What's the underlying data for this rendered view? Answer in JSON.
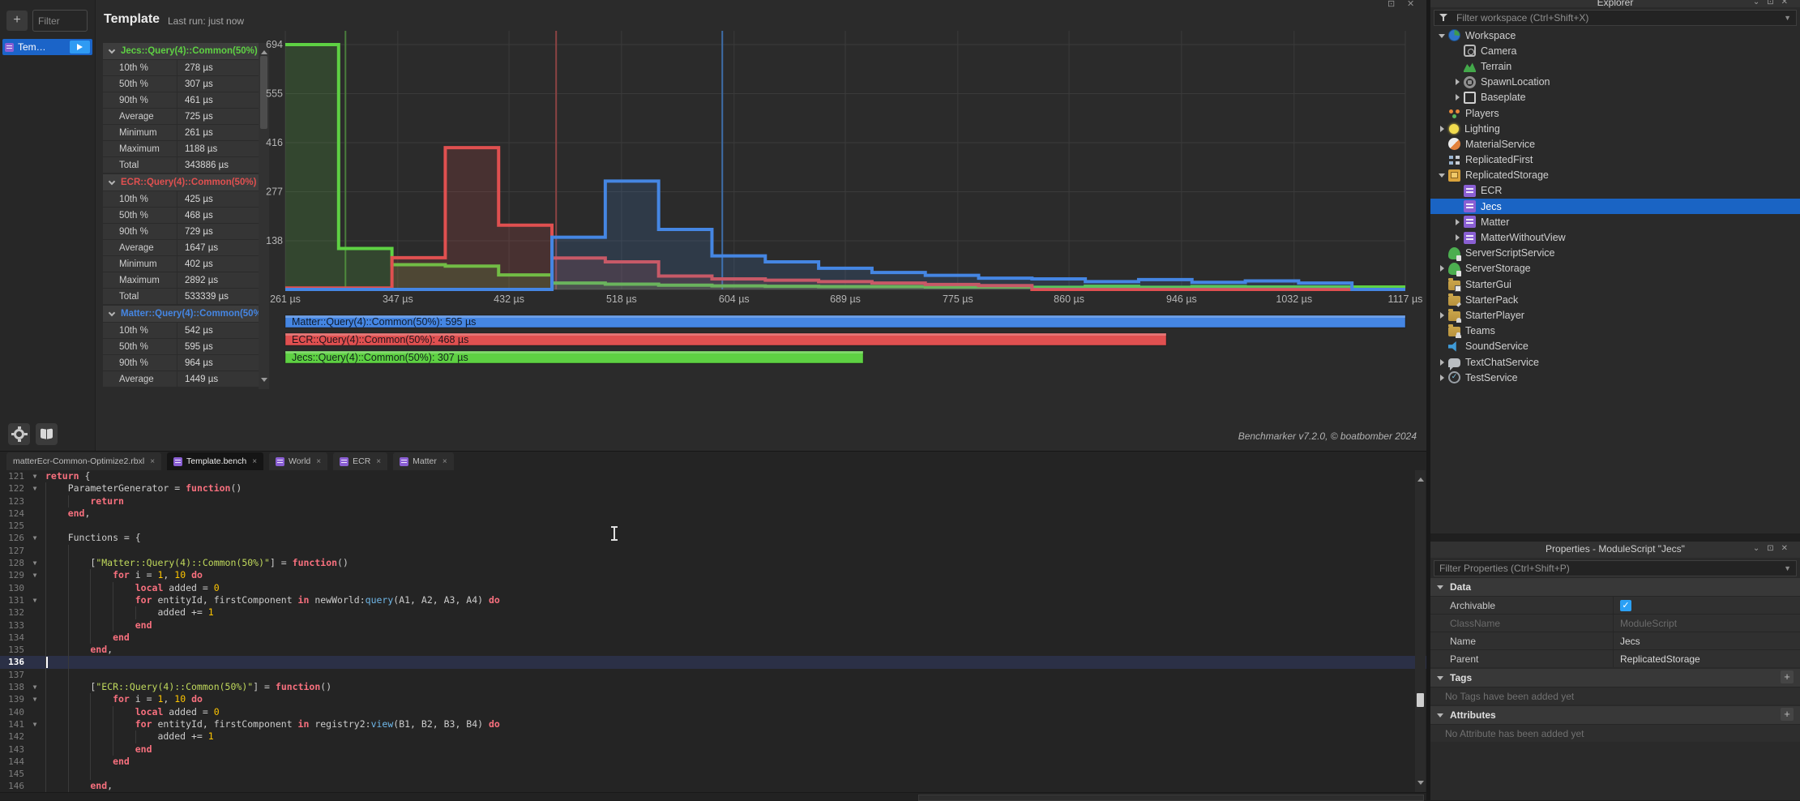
{
  "bench": {
    "sidebar": {
      "add_label": "+",
      "filter_placeholder": "Filter",
      "item_label": "Tem…"
    },
    "header": {
      "title": "Template",
      "last_run": "Last run: just now"
    },
    "stats": [
      {
        "name": "Jecs::Query(4)::Common(50%)",
        "color": "#5ed143",
        "rows": [
          [
            "10th %",
            "278 µs"
          ],
          [
            "50th %",
            "307 µs"
          ],
          [
            "90th %",
            "461 µs"
          ],
          [
            "Average",
            "725 µs"
          ],
          [
            "Minimum",
            "261 µs"
          ],
          [
            "Maximum",
            "1188 µs"
          ],
          [
            "Total",
            "343886 µs"
          ]
        ]
      },
      {
        "name": "ECR::Query(4)::Common(50%)",
        "color": "#e05050",
        "rows": [
          [
            "10th %",
            "425 µs"
          ],
          [
            "50th %",
            "468 µs"
          ],
          [
            "90th %",
            "729 µs"
          ],
          [
            "Average",
            "1647 µs"
          ],
          [
            "Minimum",
            "402 µs"
          ],
          [
            "Maximum",
            "2892 µs"
          ],
          [
            "Total",
            "533339 µs"
          ]
        ]
      },
      {
        "name": "Matter::Query(4)::Common(50%)",
        "color": "#4586e3",
        "rows": [
          [
            "10th %",
            "542 µs"
          ],
          [
            "50th %",
            "595 µs"
          ],
          [
            "90th %",
            "964 µs"
          ],
          [
            "Average",
            "1449 µs"
          ]
        ]
      }
    ],
    "credit": "Benchmarker v7.2.0, © boatbomber 2024"
  },
  "chart_data": {
    "type": "step-histogram",
    "x_unit": "µs",
    "x_min": 261,
    "x_max": 1117,
    "y_max": 694,
    "y_ticks": [
      694,
      555,
      416,
      277,
      138
    ],
    "x_ticks": [
      261,
      347,
      432,
      518,
      604,
      689,
      775,
      860,
      946,
      1032,
      1117
    ],
    "x_tick_labels": [
      "261 µs",
      "347 µs",
      "432 µs",
      "518 µs",
      "604 µs",
      "689 µs",
      "775 µs",
      "860 µs",
      "946 µs",
      "1032 µs",
      "1117 µs"
    ],
    "grid": true,
    "series": [
      {
        "name": "Jecs::Query(4)::Common(50%)",
        "color": "#5ed143",
        "median_color": "#4a7c3c",
        "median_us": 307,
        "legend": "Jecs::Query(4)::Common(50%): 307 µs",
        "values": [
          694,
          116,
          70,
          66,
          41,
          18,
          15,
          12,
          10,
          9,
          8,
          8,
          7,
          7,
          6,
          9,
          6,
          8,
          7,
          7,
          7
        ]
      },
      {
        "name": "ECR::Query(4)::Common(50%)",
        "color": "#e05050",
        "median_color": "#8c4343",
        "median_us": 468,
        "legend": "ECR::Query(4)::Common(50%): 468 µs",
        "values": [
          4,
          4,
          90,
          402,
          182,
          89,
          78,
          38,
          30,
          26,
          22,
          18,
          14,
          11,
          0,
          0,
          0,
          0,
          0,
          0,
          0
        ]
      },
      {
        "name": "Matter::Query(4)::Common(50%)",
        "color": "#4586e3",
        "median_color": "#3e6da8",
        "median_us": 595,
        "legend": "Matter::Query(4)::Common(50%): 595 µs",
        "values": [
          0,
          0,
          0,
          0,
          0,
          148,
          307,
          170,
          95,
          78,
          60,
          48,
          40,
          32,
          30,
          22,
          28,
          20,
          24,
          18,
          0
        ]
      }
    ],
    "legend_position": "bottom"
  },
  "tabs": {
    "close_glyph": "×",
    "items": [
      {
        "label": "matterEcr-Common-Optimize2.rbxl",
        "script_icon": false,
        "active": false
      },
      {
        "label": "Template.bench",
        "script_icon": true,
        "active": true
      },
      {
        "label": "World",
        "script_icon": true,
        "active": false
      },
      {
        "label": "ECR",
        "script_icon": true,
        "active": false
      },
      {
        "label": "Matter",
        "script_icon": true,
        "active": false
      }
    ]
  },
  "editor": {
    "lines": [
      {
        "n": 121,
        "fold": true,
        "indent": 0,
        "tokens": [
          [
            "kw",
            "return"
          ],
          [
            "pl",
            " {"
          ]
        ]
      },
      {
        "n": 122,
        "fold": true,
        "indent": 1,
        "tokens": [
          [
            "pl",
            "ParameterGenerator = "
          ],
          [
            "kw",
            "function"
          ],
          [
            "pl",
            "()"
          ]
        ]
      },
      {
        "n": 123,
        "fold": false,
        "indent": 2,
        "tokens": [
          [
            "kw",
            "return"
          ]
        ]
      },
      {
        "n": 124,
        "fold": false,
        "indent": 1,
        "tokens": [
          [
            "kw",
            "end"
          ],
          [
            "pl",
            ","
          ]
        ]
      },
      {
        "n": 125,
        "fold": false,
        "indent": 1,
        "tokens": []
      },
      {
        "n": 126,
        "fold": true,
        "indent": 1,
        "tokens": [
          [
            "pl",
            "Functions = {"
          ]
        ]
      },
      {
        "n": 127,
        "fold": false,
        "indent": 2,
        "tokens": []
      },
      {
        "n": 128,
        "fold": true,
        "indent": 2,
        "tokens": [
          [
            "pl",
            "["
          ],
          [
            "str",
            "\"Matter::Query(4)::Common(50%)\""
          ],
          [
            "pl",
            "] = "
          ],
          [
            "kw",
            "function"
          ],
          [
            "pl",
            "()"
          ]
        ]
      },
      {
        "n": 129,
        "fold": true,
        "indent": 3,
        "tokens": [
          [
            "kw",
            "for"
          ],
          [
            "pl",
            " i = "
          ],
          [
            "num",
            "1"
          ],
          [
            "pl",
            ", "
          ],
          [
            "num",
            "10"
          ],
          [
            "pl",
            " "
          ],
          [
            "kw",
            "do"
          ]
        ]
      },
      {
        "n": 130,
        "fold": false,
        "indent": 4,
        "tokens": [
          [
            "kw",
            "local"
          ],
          [
            "pl",
            " added = "
          ],
          [
            "num",
            "0"
          ]
        ]
      },
      {
        "n": 131,
        "fold": true,
        "indent": 4,
        "tokens": [
          [
            "kw",
            "for"
          ],
          [
            "pl",
            " entityId, firstComponent "
          ],
          [
            "kw",
            "in"
          ],
          [
            "pl",
            " newWorld:"
          ],
          [
            "mtd",
            "query"
          ],
          [
            "pl",
            "(A1, A2, A3, A4) "
          ],
          [
            "kw",
            "do"
          ]
        ]
      },
      {
        "n": 132,
        "fold": false,
        "indent": 5,
        "tokens": [
          [
            "pl",
            "added += "
          ],
          [
            "num",
            "1"
          ]
        ]
      },
      {
        "n": 133,
        "fold": false,
        "indent": 4,
        "tokens": [
          [
            "kw",
            "end"
          ]
        ]
      },
      {
        "n": 134,
        "fold": false,
        "indent": 3,
        "tokens": [
          [
            "kw",
            "end"
          ]
        ]
      },
      {
        "n": 135,
        "fold": false,
        "indent": 2,
        "tokens": [
          [
            "kw",
            "end"
          ],
          [
            "pl",
            ","
          ]
        ]
      },
      {
        "n": 136,
        "fold": false,
        "indent": 2,
        "tokens": [],
        "active": true,
        "caret": true
      },
      {
        "n": 137,
        "fold": false,
        "indent": 2,
        "tokens": []
      },
      {
        "n": 138,
        "fold": true,
        "indent": 2,
        "tokens": [
          [
            "pl",
            "["
          ],
          [
            "str",
            "\"ECR::Query(4)::Common(50%)\""
          ],
          [
            "pl",
            "] = "
          ],
          [
            "kw",
            "function"
          ],
          [
            "pl",
            "()"
          ]
        ]
      },
      {
        "n": 139,
        "fold": true,
        "indent": 3,
        "tokens": [
          [
            "kw",
            "for"
          ],
          [
            "pl",
            " i = "
          ],
          [
            "num",
            "1"
          ],
          [
            "pl",
            ", "
          ],
          [
            "num",
            "10"
          ],
          [
            "pl",
            " "
          ],
          [
            "kw",
            "do"
          ]
        ]
      },
      {
        "n": 140,
        "fold": false,
        "indent": 4,
        "tokens": [
          [
            "kw",
            "local"
          ],
          [
            "pl",
            " added = "
          ],
          [
            "num",
            "0"
          ]
        ]
      },
      {
        "n": 141,
        "fold": true,
        "indent": 4,
        "tokens": [
          [
            "kw",
            "for"
          ],
          [
            "pl",
            " entityId, firstComponent "
          ],
          [
            "kw",
            "in"
          ],
          [
            "pl",
            " registry2:"
          ],
          [
            "mtd",
            "view"
          ],
          [
            "pl",
            "(B1, B2, B3, B4) "
          ],
          [
            "kw",
            "do"
          ]
        ]
      },
      {
        "n": 142,
        "fold": false,
        "indent": 5,
        "tokens": [
          [
            "pl",
            "added += "
          ],
          [
            "num",
            "1"
          ]
        ]
      },
      {
        "n": 143,
        "fold": false,
        "indent": 4,
        "tokens": [
          [
            "kw",
            "end"
          ]
        ]
      },
      {
        "n": 144,
        "fold": false,
        "indent": 3,
        "tokens": [
          [
            "kw",
            "end"
          ]
        ]
      },
      {
        "n": 145,
        "fold": false,
        "indent": 3,
        "tokens": []
      },
      {
        "n": 146,
        "fold": false,
        "indent": 2,
        "tokens": [
          [
            "kw",
            "end"
          ],
          [
            "pl",
            ","
          ]
        ]
      }
    ]
  },
  "explorer": {
    "title": "Explorer",
    "filter_placeholder": "Filter workspace (Ctrl+Shift+X)",
    "items": [
      {
        "label": "Workspace",
        "icon": "workspace",
        "lvl": 0,
        "arrow": "open"
      },
      {
        "label": "Camera",
        "icon": "camera",
        "lvl": 1
      },
      {
        "label": "Terrain",
        "icon": "terrain",
        "lvl": 1
      },
      {
        "label": "SpawnLocation",
        "icon": "spawnlocation",
        "lvl": 1,
        "arrow": "closed"
      },
      {
        "label": "Baseplate",
        "icon": "baseplate",
        "lvl": 1,
        "arrow": "closed"
      },
      {
        "label": "Players",
        "icon": "players",
        "lvl": 0
      },
      {
        "label": "Lighting",
        "icon": "lighting",
        "lvl": 0,
        "arrow": "closed"
      },
      {
        "label": "MaterialService",
        "icon": "materialservice",
        "lvl": 0
      },
      {
        "label": "ReplicatedFirst",
        "icon": "replicatedfirst",
        "lvl": 0
      },
      {
        "label": "ReplicatedStorage",
        "icon": "replicatedstorage",
        "lvl": 0,
        "arrow": "open"
      },
      {
        "label": "ECR",
        "icon": "script",
        "lvl": 1
      },
      {
        "label": "Jecs",
        "icon": "script",
        "lvl": 1,
        "selected": true
      },
      {
        "label": "Matter",
        "icon": "script",
        "lvl": 1,
        "arrow": "closed"
      },
      {
        "label": "MatterWithoutView",
        "icon": "script",
        "lvl": 1,
        "arrow": "closed"
      },
      {
        "label": "ServerScriptService",
        "icon": "cloud",
        "lvl": 0
      },
      {
        "label": "ServerStorage",
        "icon": "cloud",
        "lvl": 0,
        "arrow": "closed"
      },
      {
        "label": "StarterGui",
        "icon": "folder d-square",
        "lvl": 0
      },
      {
        "label": "StarterPack",
        "icon": "folder d-tool",
        "lvl": 0
      },
      {
        "label": "StarterPlayer",
        "icon": "folder d-person",
        "lvl": 0,
        "arrow": "closed"
      },
      {
        "label": "Teams",
        "icon": "folder d-people",
        "lvl": 0
      },
      {
        "label": "SoundService",
        "icon": "soundservice",
        "lvl": 0
      },
      {
        "label": "TextChatService",
        "icon": "textchatservice",
        "lvl": 0,
        "arrow": "closed"
      },
      {
        "label": "TestService",
        "icon": "testservice",
        "lvl": 0,
        "arrow": "closed"
      }
    ]
  },
  "properties": {
    "title": "Properties - ModuleScript \"Jecs\"",
    "filter_placeholder": "Filter Properties (Ctrl+Shift+P)",
    "sections": [
      {
        "label": "Data",
        "rows": [
          {
            "label": "Archivable",
            "type": "checkbox",
            "checked": true
          },
          {
            "label": "ClassName",
            "value": "ModuleScript",
            "disabled": true
          },
          {
            "label": "Name",
            "value": "Jecs"
          },
          {
            "label": "Parent",
            "value": "ReplicatedStorage"
          }
        ]
      },
      {
        "label": "Tags",
        "has_add": true,
        "empty_text": "No Tags have been added yet"
      },
      {
        "label": "Attributes",
        "has_add": true,
        "empty_text": "No Attribute has been added yet"
      }
    ]
  }
}
